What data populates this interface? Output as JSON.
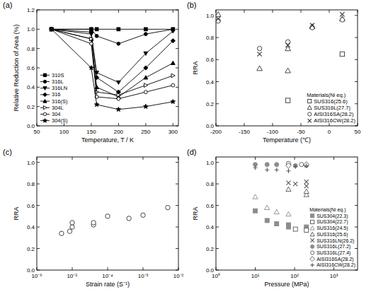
{
  "chart_data": [
    {
      "type": "line",
      "title": "(a)",
      "x_label": "Temperature, T / K",
      "y_label": "Relative Reduction of Area (%)",
      "x": [
        77,
        150,
        160,
        200,
        250,
        300
      ],
      "series": [
        {
          "name": "310S",
          "color": "#000000",
          "marker": "square",
          "values": [
            1.0,
            1.0,
            1.0,
            1.0,
            1.0,
            1.0
          ]
        },
        {
          "name": "316L",
          "color": "#000000",
          "marker": "circle",
          "values": [
            1.0,
            1.0,
            0.93,
            0.85,
            0.95,
            1.0
          ]
        },
        {
          "name": "316LN",
          "color": "#000000",
          "marker": "triangle-down",
          "values": [
            1.0,
            0.95,
            0.55,
            0.45,
            0.75,
            0.98
          ]
        },
        {
          "name": "316",
          "color": "#000000",
          "marker": "diamond",
          "values": [
            1.0,
            0.97,
            0.5,
            0.35,
            0.6,
            0.88
          ]
        },
        {
          "name": "316(S)",
          "color": "#000000",
          "marker": "triangle",
          "values": [
            1.0,
            0.9,
            0.4,
            0.3,
            0.5,
            0.65
          ]
        },
        {
          "name": "304L",
          "color": "#000000",
          "marker": "open-triangle-right",
          "values": [
            1.0,
            0.9,
            0.35,
            0.32,
            0.42,
            0.52
          ]
        },
        {
          "name": "304",
          "color": "#000000",
          "marker": "open-circle",
          "values": [
            1.0,
            0.85,
            0.3,
            0.28,
            0.35,
            0.42
          ]
        },
        {
          "name": "304(S)",
          "color": "#000000",
          "marker": "star",
          "values": [
            1.0,
            0.6,
            0.22,
            0.17,
            0.2,
            0.25
          ]
        }
      ],
      "xlim": [
        50,
        310
      ],
      "xticks": [
        50,
        100,
        150,
        200,
        250,
        300
      ],
      "ylim": [
        0,
        1.2
      ],
      "yticks": [
        {
          "value": 0,
          "label": "0.0"
        },
        0.2,
        0.4,
        0.6,
        0.8,
        {
          "value": 1,
          "label": "1.0"
        },
        1.2
      ],
      "legend": "lower left",
      "line_style": "solid"
    },
    {
      "type": "scatter",
      "title": "(b)",
      "x_label": "Temperature (℃)",
      "y_label": "RRA",
      "legend_title": "Materials(Ni eq.)",
      "series": [
        {
          "name": "SUS316(25.6)",
          "color": "#333333",
          "marker": "open-square",
          "x": [
            -73,
            23
          ],
          "values": [
            0.23,
            0.65
          ]
        },
        {
          "name": "SUS316L(27.7)",
          "color": "#333333",
          "marker": "open-triangle",
          "x": [
            -196,
            -123,
            -73,
            -73,
            -30,
            23
          ],
          "values": [
            1.01,
            0.52,
            0.5,
            0.7,
            0.9,
            0.97
          ]
        },
        {
          "name": "AISI316SA(28.2)",
          "color": "#333333",
          "marker": "open-circle",
          "x": [
            -196,
            -123,
            -73,
            -30,
            23
          ],
          "values": [
            0.95,
            0.7,
            0.76,
            0.89,
            0.96
          ]
        },
        {
          "name": "AISI316CW(28.2)",
          "color": "#333333",
          "marker": "x",
          "x": [
            -196,
            -123,
            -73,
            -30,
            23
          ],
          "values": [
            0.97,
            0.65,
            0.73,
            0.91,
            1.01
          ]
        }
      ],
      "xlim": [
        -200,
        50
      ],
      "xticks": [
        -200,
        -150,
        -100,
        -50,
        0,
        50
      ],
      "ylim": [
        0,
        1.05
      ],
      "yticks": [
        {
          "value": 0,
          "label": "0.0"
        },
        0.2,
        0.4,
        0.6,
        0.8,
        {
          "value": 1,
          "label": "1.0"
        }
      ],
      "legend": "lower right"
    },
    {
      "type": "scatter",
      "title": "(c)",
      "x_label": "Strain rate (S⁻¹)",
      "y_label": "RRA",
      "color": "#333333",
      "marker": "open-circle",
      "x": [
        5e-06,
        8.5e-06,
        1e-05,
        1e-05,
        4e-05,
        4e-05,
        0.0001,
        0.0004,
        0.001,
        0.005
      ],
      "values": [
        0.34,
        0.36,
        0.4,
        0.44,
        0.42,
        0.44,
        0.5,
        0.48,
        0.51,
        0.58
      ],
      "log": "x",
      "xlim": [
        1e-06,
        0.01
      ],
      "xticks": [
        {
          "value": 1e-06,
          "label": "10⁻⁶"
        },
        {
          "value": 1e-05,
          "label": "10⁻⁵"
        },
        {
          "value": 0.0001,
          "label": "10⁻⁴"
        },
        {
          "value": 0.001,
          "label": "10⁻³"
        },
        {
          "value": 0.01,
          "label": "10⁻²"
        }
      ],
      "ylim": [
        0,
        1.05
      ],
      "yticks": [
        {
          "value": 0,
          "label": "0.0"
        },
        0.2,
        0.4,
        0.6,
        0.8,
        {
          "value": 1,
          "label": "1.0"
        }
      ]
    },
    {
      "type": "scatter",
      "title": "(d)",
      "x_label": "Pressure (MPa)",
      "y_label": "RRA",
      "legend_title": "Materials(Ni eq.)",
      "series": [
        {
          "name": "SUS304(22.3)",
          "color": "#8c8c8c",
          "marker": "square",
          "x": [
            10,
            20,
            35,
            70,
            70,
            200
          ],
          "values": [
            0.55,
            0.46,
            0.43,
            0.42,
            0.4,
            0.4
          ]
        },
        {
          "name": "SUS304(22.7)",
          "color": "#555555",
          "marker": "open-square",
          "x": [
            105,
            200
          ],
          "values": [
            0.38,
            0.37
          ]
        },
        {
          "name": "SUS316(24.5)",
          "color": "#8c8c8c",
          "marker": "open-triangle",
          "x": [
            10,
            20,
            35,
            70
          ],
          "values": [
            0.68,
            0.58,
            0.54,
            0.52
          ]
        },
        {
          "name": "SUS316(25.6)",
          "color": "#555555",
          "marker": "open-triangle",
          "x": [
            70,
            200,
            200
          ],
          "values": [
            0.75,
            0.7,
            0.73
          ]
        },
        {
          "name": "SUS316LN(26.2)",
          "color": "#555555",
          "marker": "x",
          "x": [
            70,
            105,
            200,
            200
          ],
          "values": [
            0.81,
            0.8,
            0.78,
            0.82
          ]
        },
        {
          "name": "SUS316L(27.2)",
          "color": "#8c8c8c",
          "marker": "circle",
          "x": [
            10,
            20,
            35,
            70,
            105,
            200
          ],
          "values": [
            0.98,
            0.98,
            0.98,
            0.98,
            0.97,
            0.97
          ]
        },
        {
          "name": "SUS316L(27.4)",
          "color": "#555555",
          "marker": "open-circle",
          "x": [
            70,
            150
          ],
          "values": [
            0.99,
            0.98
          ]
        },
        {
          "name": "AISI316SA(28.2)",
          "color": "#555555",
          "marker": "open-diamond",
          "x": [
            70,
            200
          ],
          "values": [
            0.97,
            0.98
          ]
        },
        {
          "name": "AISI316CW(28.2)",
          "color": "#555555",
          "marker": "plus",
          "x": [
            10,
            20,
            35,
            70,
            105,
            200
          ],
          "values": [
            0.95,
            0.93,
            0.93,
            0.92,
            0.96,
            0.97
          ]
        }
      ],
      "log": "x",
      "xlim": [
        1,
        4000
      ],
      "xticks": [
        {
          "value": 1,
          "label": "10⁰"
        },
        {
          "value": 10,
          "label": "10¹"
        },
        {
          "value": 100,
          "label": "10²"
        },
        {
          "value": 1000,
          "label": "10³"
        }
      ],
      "ylim": [
        0,
        1.05
      ],
      "yticks": [
        {
          "value": 0,
          "label": "0.0"
        },
        0.2,
        0.4,
        0.6,
        0.8,
        {
          "value": 1,
          "label": "1.0"
        }
      ],
      "legend": "lower right"
    }
  ]
}
